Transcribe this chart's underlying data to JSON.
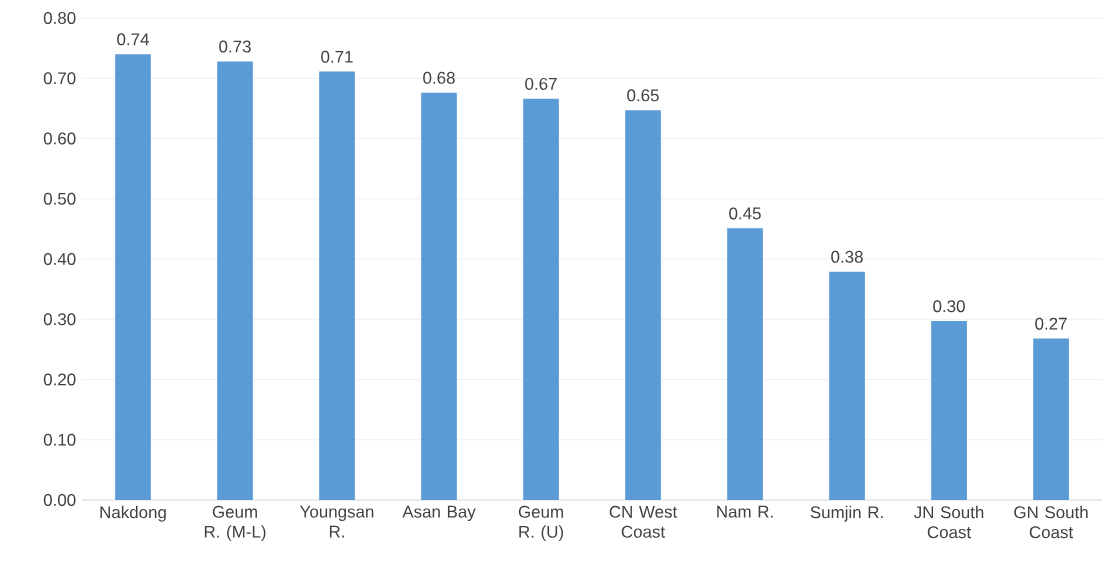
{
  "chart_data": {
    "type": "bar",
    "categories": [
      "Nakdong",
      "Geum R. (M-L)",
      "Youngsan R.",
      "Asan Bay",
      "Geum R. (U)",
      "CN West Coast",
      "Nam R.",
      "Sumjin R.",
      "JN South Coast",
      "GN South Coast"
    ],
    "values": [
      0.74,
      0.728,
      0.711,
      0.676,
      0.666,
      0.647,
      0.451,
      0.379,
      0.297,
      0.268
    ],
    "value_labels": [
      "0.74",
      "0.73",
      "0.71",
      "0.68",
      "0.67",
      "0.65",
      "0.45",
      "0.38",
      "0.30",
      "0.27"
    ],
    "color": "#5b9bd5",
    "ylim": [
      0,
      0.8
    ],
    "yticks": [
      {
        "value": 0,
        "label": "0.00"
      },
      {
        "value": 0.1,
        "label": "0.10"
      },
      {
        "value": 0.2,
        "label": "0.20"
      },
      {
        "value": 0.3,
        "label": "0.30"
      },
      {
        "value": 0.4,
        "label": "0.40"
      },
      {
        "value": 0.5,
        "label": "0.50"
      },
      {
        "value": 0.6,
        "label": "0.60"
      },
      {
        "value": 0.7,
        "label": "0.70"
      },
      {
        "value": 0.8,
        "label": "0.80"
      }
    ],
    "grid": "y"
  }
}
